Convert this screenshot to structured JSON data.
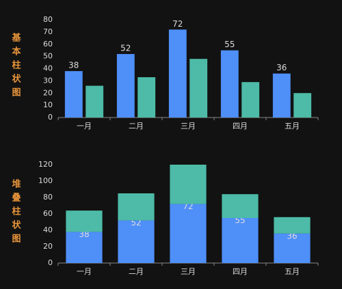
{
  "chart_data": [
    {
      "type": "bar",
      "title": "基本柱状图",
      "stacked": false,
      "categories": [
        "一月",
        "二月",
        "三月",
        "四月",
        "五月"
      ],
      "series": [
        {
          "color": "#4f8ff8",
          "values": [
            38,
            52,
            72,
            55,
            36
          ]
        },
        {
          "color": "#4dbba7",
          "values": [
            26,
            33,
            48,
            29,
            20
          ]
        }
      ],
      "data_labels": true,
      "ylim": [
        0,
        80
      ],
      "yticks": [
        0,
        10,
        20,
        30,
        40,
        50,
        60,
        70,
        80
      ]
    },
    {
      "type": "bar",
      "title": "堆叠柱状图",
      "stacked": true,
      "categories": [
        "一月",
        "二月",
        "三月",
        "四月",
        "五月"
      ],
      "series": [
        {
          "color": "#4f8ff8",
          "values": [
            38,
            52,
            72,
            55,
            36
          ]
        },
        {
          "color": "#4dbba7",
          "values": [
            26,
            33,
            48,
            29,
            20
          ]
        }
      ],
      "data_labels": true,
      "ylim": [
        0,
        120
      ],
      "yticks": [
        0,
        20,
        40,
        60,
        80,
        100,
        120
      ]
    }
  ]
}
